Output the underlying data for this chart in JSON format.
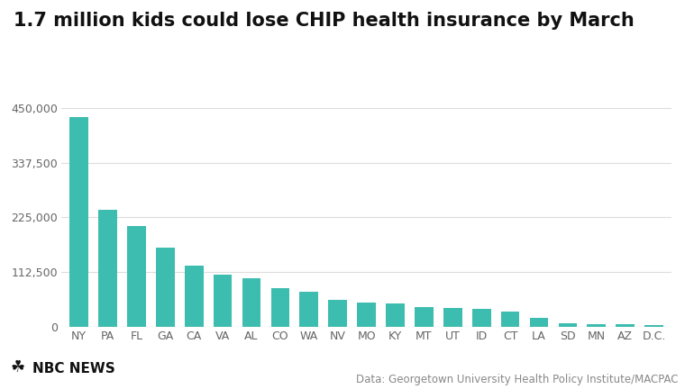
{
  "title": "1.7 million kids could lose CHIP health insurance by March",
  "categories": [
    "NY",
    "PA",
    "FL",
    "GA",
    "CA",
    "VA",
    "AL",
    "CO",
    "WA",
    "NV",
    "MO",
    "KY",
    "MT",
    "UT",
    "ID",
    "CT",
    "LA",
    "SD",
    "MN",
    "AZ",
    "D.C."
  ],
  "values": [
    432000,
    240000,
    207000,
    162000,
    125000,
    107000,
    100000,
    80000,
    72000,
    55000,
    50000,
    48000,
    40000,
    38000,
    37000,
    32000,
    18000,
    8000,
    6000,
    5000,
    4000
  ],
  "bar_color": "#3dbdb0",
  "background_color": "#ffffff",
  "yticks": [
    0,
    112500,
    225000,
    337500,
    450000
  ],
  "ytick_labels": [
    "0",
    "112,500",
    "225,000",
    "337,500",
    "450,000"
  ],
  "ylim": [
    0,
    480000
  ],
  "source_text": "Data: Georgetown University Health Policy Institute/MACPAC",
  "title_fontsize": 15,
  "tick_fontsize": 9,
  "source_fontsize": 8.5,
  "logo_fontsize": 11
}
